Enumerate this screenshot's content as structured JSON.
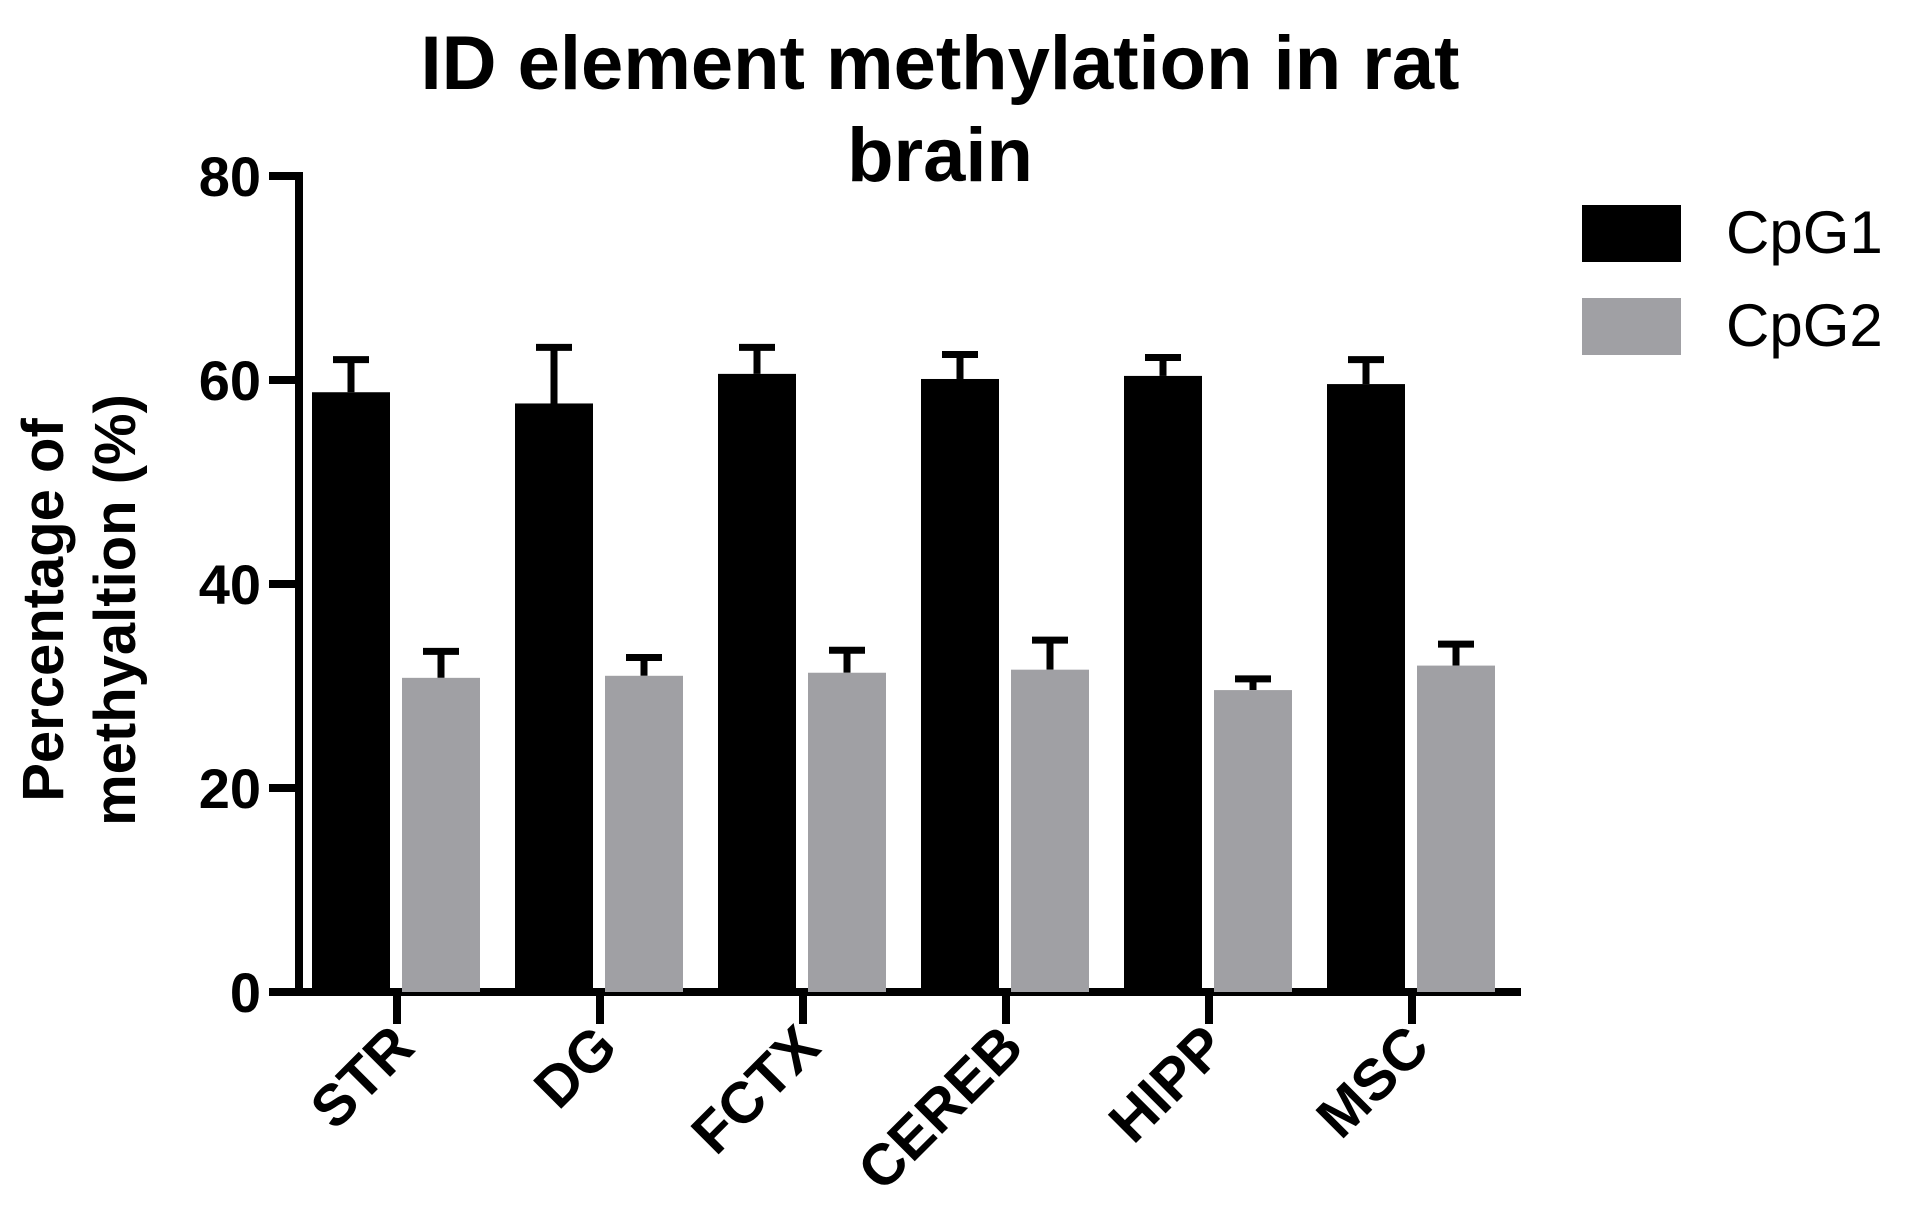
{
  "chart_data": {
    "type": "bar",
    "title": "ID element methylation in rat brain",
    "y_label": "Percentage of methyaltion (%)",
    "categories": [
      "STR",
      "DG",
      "FCTX",
      "CEREB",
      "HIPP",
      "MSC"
    ],
    "series": [
      {
        "name": "CpG1",
        "color": "#000000",
        "values": [
          58.8,
          57.7,
          60.6,
          60.1,
          60.4,
          59.6
        ],
        "errors": [
          3.2,
          5.5,
          2.6,
          2.4,
          1.8,
          2.4
        ]
      },
      {
        "name": "CpG2",
        "color": "#a0a0a4",
        "values": [
          30.8,
          31.0,
          31.3,
          31.6,
          29.6,
          32.0
        ],
        "errors": [
          2.6,
          1.8,
          2.2,
          2.9,
          1.1,
          2.1
        ]
      }
    ],
    "ylim": [
      0,
      80
    ],
    "yticks": [
      0,
      20,
      40,
      60,
      80
    ],
    "grid": false,
    "legend": "right"
  }
}
